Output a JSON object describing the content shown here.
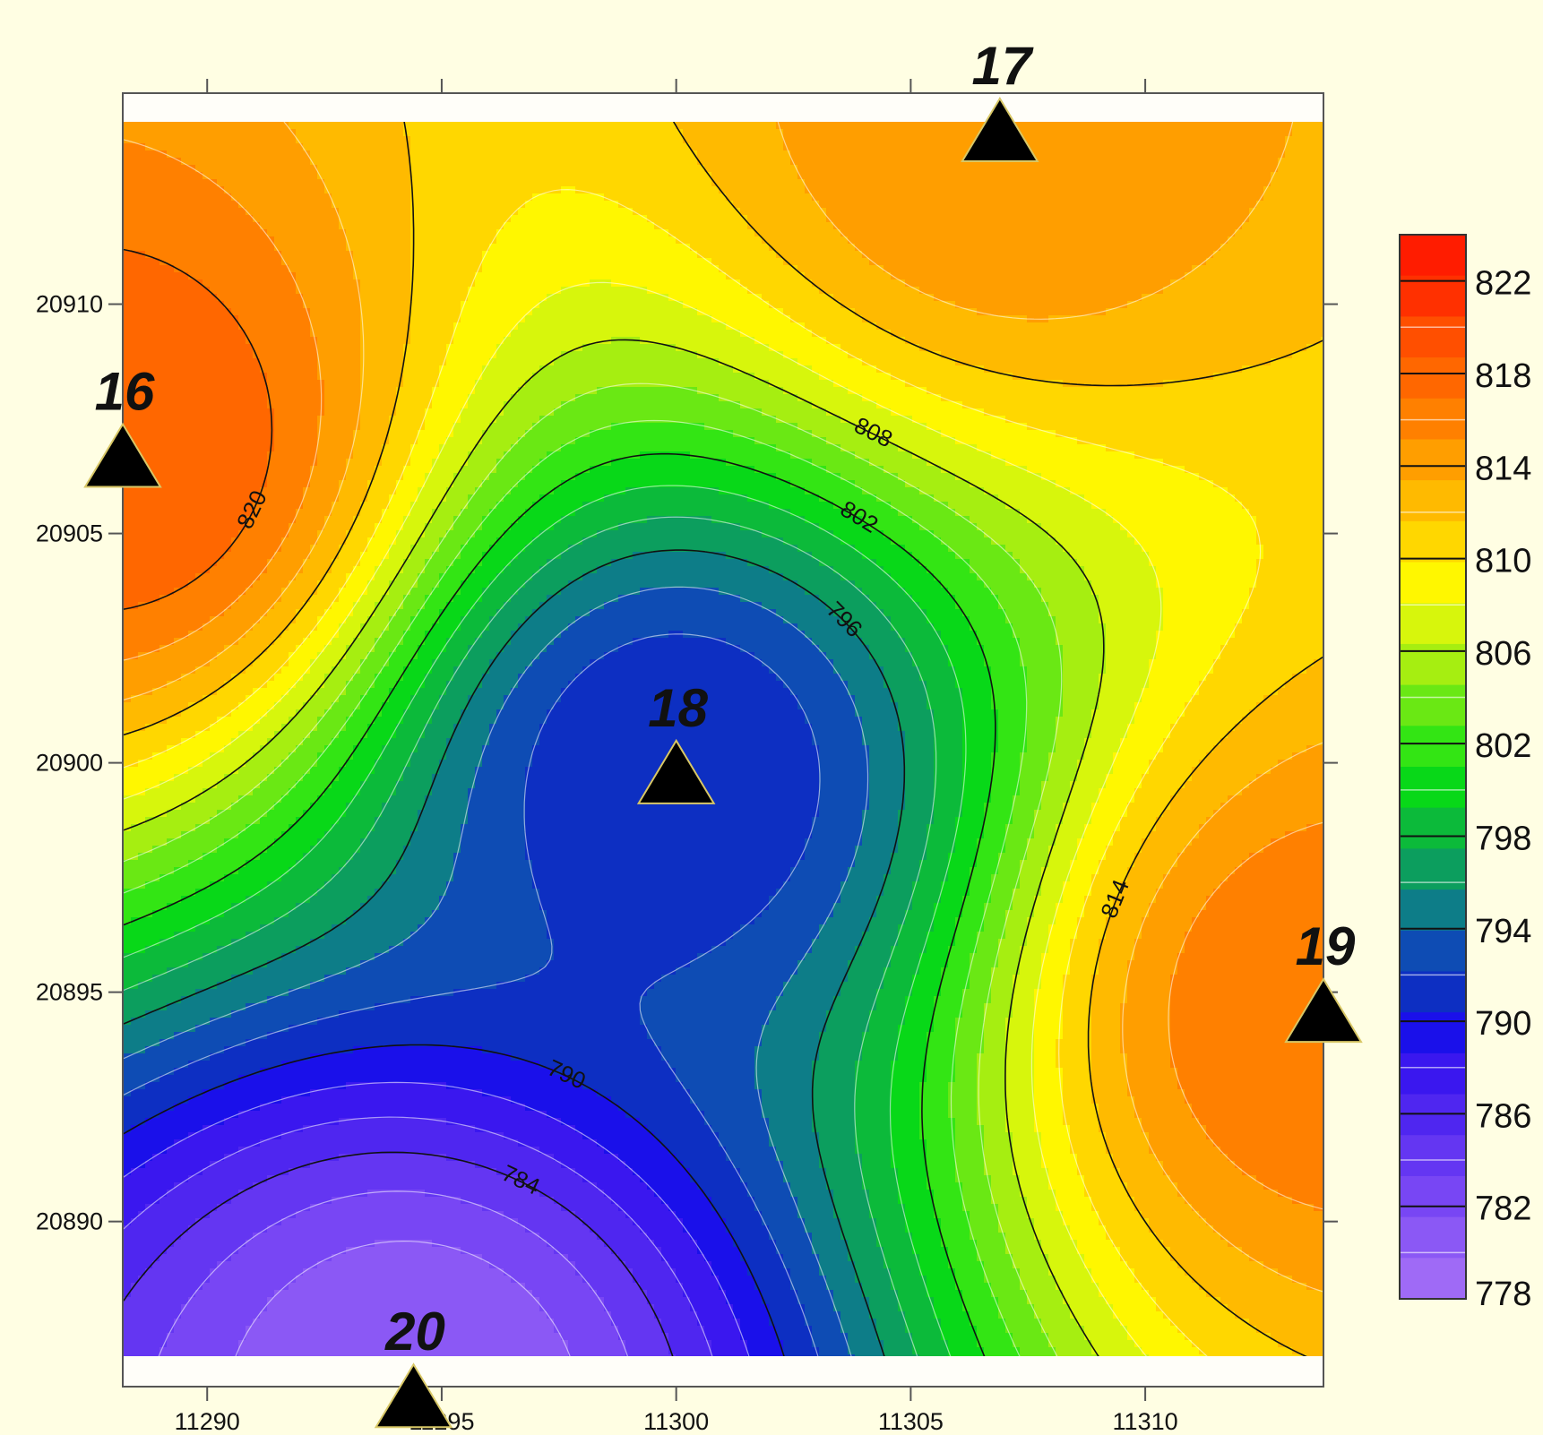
{
  "chart_data": {
    "type": "contour",
    "title": "",
    "xlabel": "",
    "ylabel": "",
    "xlim": [
      11288.2,
      11313.8
    ],
    "ylim": [
      20886.4,
      20914.6
    ],
    "x_ticks": [
      11290,
      11295,
      11300,
      11305,
      11310
    ],
    "y_ticks": [
      20890,
      20895,
      20900,
      20905,
      20910
    ],
    "colorbar": {
      "levels": [
        776,
        778,
        780,
        782,
        784,
        786,
        788,
        790,
        792,
        794,
        796,
        798,
        800,
        802,
        804,
        806,
        808,
        810,
        812,
        814,
        816,
        818,
        820,
        822,
        824
      ],
      "labeled_ticks": [
        778,
        782,
        786,
        790,
        794,
        798,
        802,
        806,
        810,
        814,
        818,
        822
      ],
      "colors": [
        "#b37cf6",
        "#9f6af6",
        "#8b58f5",
        "#7846f4",
        "#6436f2",
        "#4f26f0",
        "#3a17ef",
        "#1a10ea",
        "#0d2fc2",
        "#0e4cb4",
        "#0d7d88",
        "#0c9e5e",
        "#0cba3a",
        "#08d818",
        "#33e514",
        "#6ae814",
        "#a6ee11",
        "#d7f60c",
        "#fff700",
        "#ffd700",
        "#ffba00",
        "#ff9e00",
        "#ff8000",
        "#ff6700",
        "#ff4f00",
        "#ff3000",
        "#ff1c00",
        "#ff0000"
      ]
    },
    "contour_lines": [
      {
        "value": 784,
        "label": "784"
      },
      {
        "value": 790,
        "label": "790"
      },
      {
        "value": 796,
        "label": "796"
      },
      {
        "value": 802,
        "label": "802"
      },
      {
        "value": 808,
        "label": "808"
      },
      {
        "value": 814,
        "label": "814"
      },
      {
        "value": 820,
        "label": "820"
      }
    ],
    "stations": [
      {
        "label": "16",
        "x": 11288.2,
        "y": 20906.7,
        "value": 822
      },
      {
        "label": "17",
        "x": 11306.9,
        "y": 20913.8,
        "value": 818
      },
      {
        "label": "18",
        "x": 11300.0,
        "y": 20899.8,
        "value": 790
      },
      {
        "label": "19",
        "x": 11313.8,
        "y": 20894.6,
        "value": 820
      },
      {
        "label": "20",
        "x": 11294.4,
        "y": 20886.2,
        "value": 778
      }
    ],
    "legend_position": "right"
  }
}
